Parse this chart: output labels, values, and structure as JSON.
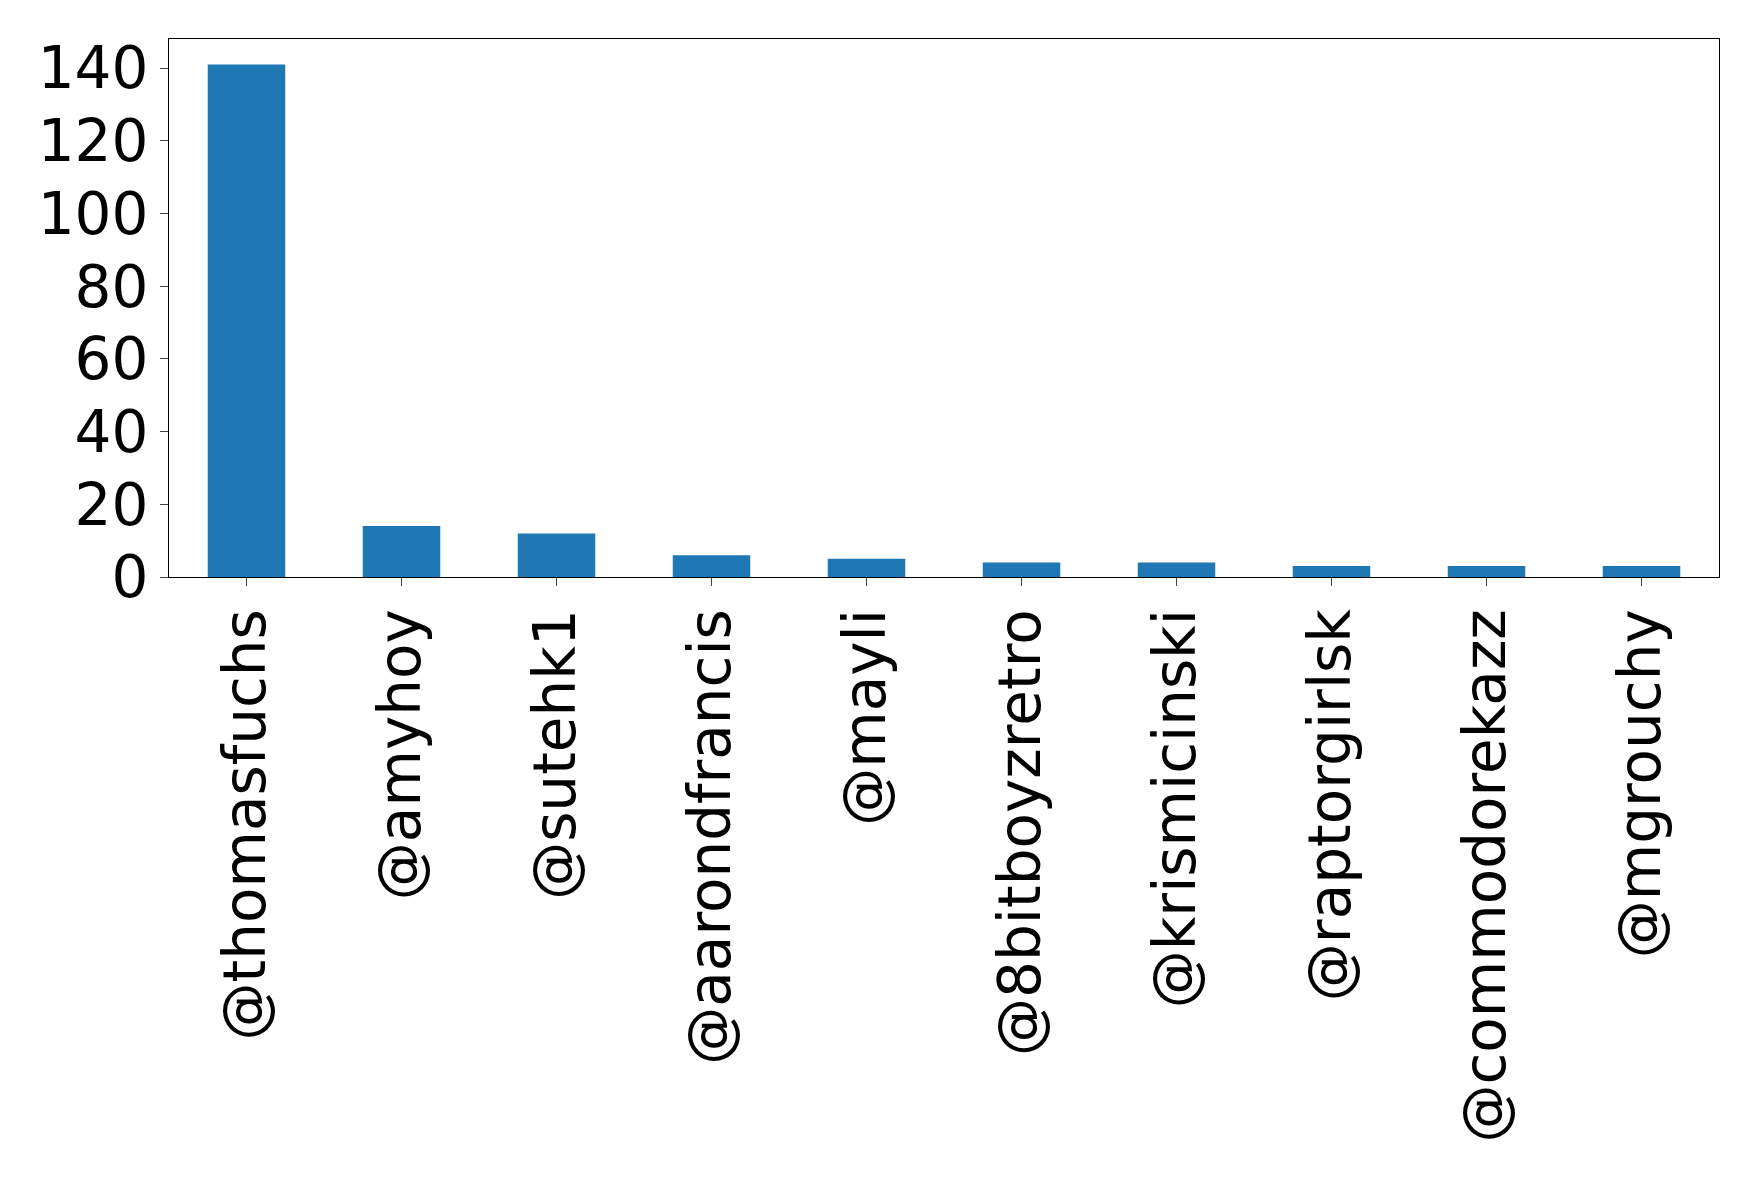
{
  "chart_data": {
    "type": "bar",
    "categories": [
      "@thomasfuchs",
      "@amyhoy",
      "@sutehk1",
      "@aarondfrancis",
      "@mayli",
      "@8bitboyzretro",
      "@krismicinski",
      "@raptorgirlsk",
      "@commodorekazz",
      "@mgrouchy"
    ],
    "values": [
      141,
      14,
      12,
      6,
      5,
      4,
      4,
      3,
      3,
      3
    ],
    "color": "#1f77b4",
    "ylim": [
      0,
      148
    ],
    "yticks": [
      0,
      20,
      40,
      60,
      80,
      100,
      120,
      140
    ]
  }
}
